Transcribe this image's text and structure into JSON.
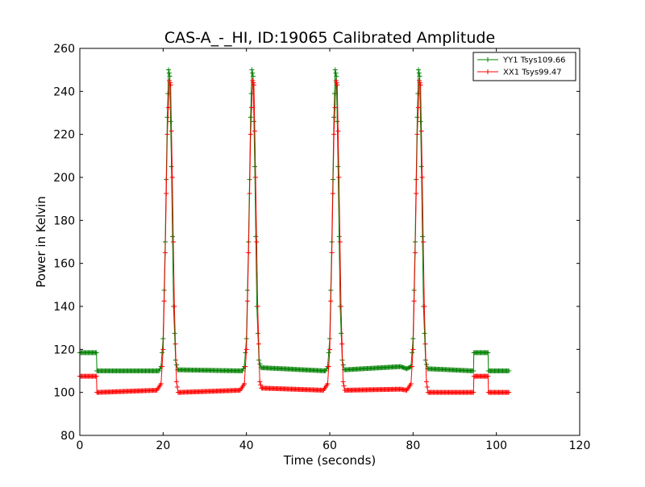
{
  "chart_data": {
    "type": "line",
    "title": "CAS-A_-_HI, ID:19065 Calibrated Amplitude",
    "xlabel": "Time (seconds)",
    "ylabel": "Power in Kelvin",
    "xlim": [
      0,
      120
    ],
    "ylim": [
      80,
      260
    ],
    "xticks": [
      0,
      20,
      40,
      60,
      80,
      100,
      120
    ],
    "yticks": [
      80,
      100,
      120,
      140,
      160,
      180,
      200,
      220,
      240,
      260
    ],
    "x_tick_labels": [
      "0",
      "20",
      "40",
      "60",
      "80",
      "100",
      "120"
    ],
    "y_tick_labels": [
      "80",
      "100",
      "120",
      "140",
      "160",
      "180",
      "200",
      "220",
      "240",
      "260"
    ],
    "grid": false,
    "legend_position": "top-right",
    "marker": "+",
    "series": [
      {
        "name": "YY1 Tsys109.66",
        "color": "#008000",
        "baseline": 110,
        "points": [
          [
            0,
            118.5
          ],
          [
            1,
            118.5
          ],
          [
            2,
            118.5
          ],
          [
            3,
            118.5
          ],
          [
            4,
            118.5
          ],
          [
            4.1,
            110
          ],
          [
            19,
            110
          ],
          [
            19.5,
            112
          ],
          [
            20,
            125
          ],
          [
            20.5,
            170
          ],
          [
            21,
            228
          ],
          [
            21.3,
            250
          ],
          [
            21.6,
            247
          ],
          [
            22,
            205
          ],
          [
            22.5,
            140
          ],
          [
            23,
            115
          ],
          [
            23.5,
            110.5
          ],
          [
            39,
            110
          ],
          [
            39.5,
            112
          ],
          [
            40,
            125
          ],
          [
            40.5,
            170
          ],
          [
            41,
            228
          ],
          [
            41.3,
            250
          ],
          [
            41.6,
            247
          ],
          [
            42,
            205
          ],
          [
            42.5,
            140
          ],
          [
            43,
            115
          ],
          [
            43.5,
            111.5
          ],
          [
            59,
            110
          ],
          [
            59.5,
            112
          ],
          [
            60,
            125
          ],
          [
            60.5,
            170
          ],
          [
            61,
            228
          ],
          [
            61.3,
            250
          ],
          [
            61.6,
            247
          ],
          [
            62,
            205
          ],
          [
            62.5,
            140
          ],
          [
            63,
            115
          ],
          [
            63.5,
            110.5
          ],
          [
            77,
            112
          ],
          [
            78.5,
            111
          ],
          [
            79.5,
            112
          ],
          [
            80,
            125
          ],
          [
            80.5,
            170
          ],
          [
            81,
            228
          ],
          [
            81.3,
            250
          ],
          [
            81.6,
            247
          ],
          [
            82,
            205
          ],
          [
            82.5,
            140
          ],
          [
            83,
            115
          ],
          [
            83.5,
            111
          ],
          [
            94.5,
            110
          ],
          [
            94.6,
            118.5
          ],
          [
            98,
            118.5
          ],
          [
            98.1,
            110
          ],
          [
            103,
            110
          ]
        ]
      },
      {
        "name": "XX1 Tsys99.47",
        "color": "#ff0000",
        "baseline": 100,
        "points": [
          [
            0,
            107.5
          ],
          [
            1,
            107.5
          ],
          [
            2,
            107.5
          ],
          [
            3,
            107.5
          ],
          [
            4,
            107.5
          ],
          [
            4.1,
            100
          ],
          [
            18.5,
            101
          ],
          [
            19.5,
            104
          ],
          [
            20,
            120
          ],
          [
            20.5,
            165
          ],
          [
            21,
            220
          ],
          [
            21.5,
            245
          ],
          [
            21.8,
            243
          ],
          [
            22.2,
            200
          ],
          [
            22.7,
            140
          ],
          [
            23.2,
            105
          ],
          [
            23.6,
            100
          ],
          [
            38.5,
            101
          ],
          [
            39.5,
            104
          ],
          [
            40,
            120
          ],
          [
            40.5,
            165
          ],
          [
            41,
            220
          ],
          [
            41.5,
            245
          ],
          [
            41.8,
            243
          ],
          [
            42.2,
            200
          ],
          [
            42.7,
            140
          ],
          [
            43.2,
            105
          ],
          [
            43.6,
            102
          ],
          [
            58.5,
            101
          ],
          [
            59.5,
            104
          ],
          [
            60,
            120
          ],
          [
            60.5,
            165
          ],
          [
            61,
            220
          ],
          [
            61.5,
            245
          ],
          [
            61.8,
            243
          ],
          [
            62.2,
            200
          ],
          [
            62.7,
            140
          ],
          [
            63.2,
            105
          ],
          [
            63.6,
            101
          ],
          [
            77,
            101.5
          ],
          [
            78.5,
            101
          ],
          [
            79.5,
            104
          ],
          [
            80,
            120
          ],
          [
            80.5,
            165
          ],
          [
            81,
            220
          ],
          [
            81.5,
            245
          ],
          [
            81.8,
            243
          ],
          [
            82.2,
            200
          ],
          [
            82.7,
            140
          ],
          [
            83.2,
            105
          ],
          [
            83.6,
            100
          ],
          [
            94.5,
            100
          ],
          [
            94.6,
            107.5
          ],
          [
            98,
            107.5
          ],
          [
            98.1,
            100
          ],
          [
            103,
            100
          ]
        ]
      }
    ]
  }
}
